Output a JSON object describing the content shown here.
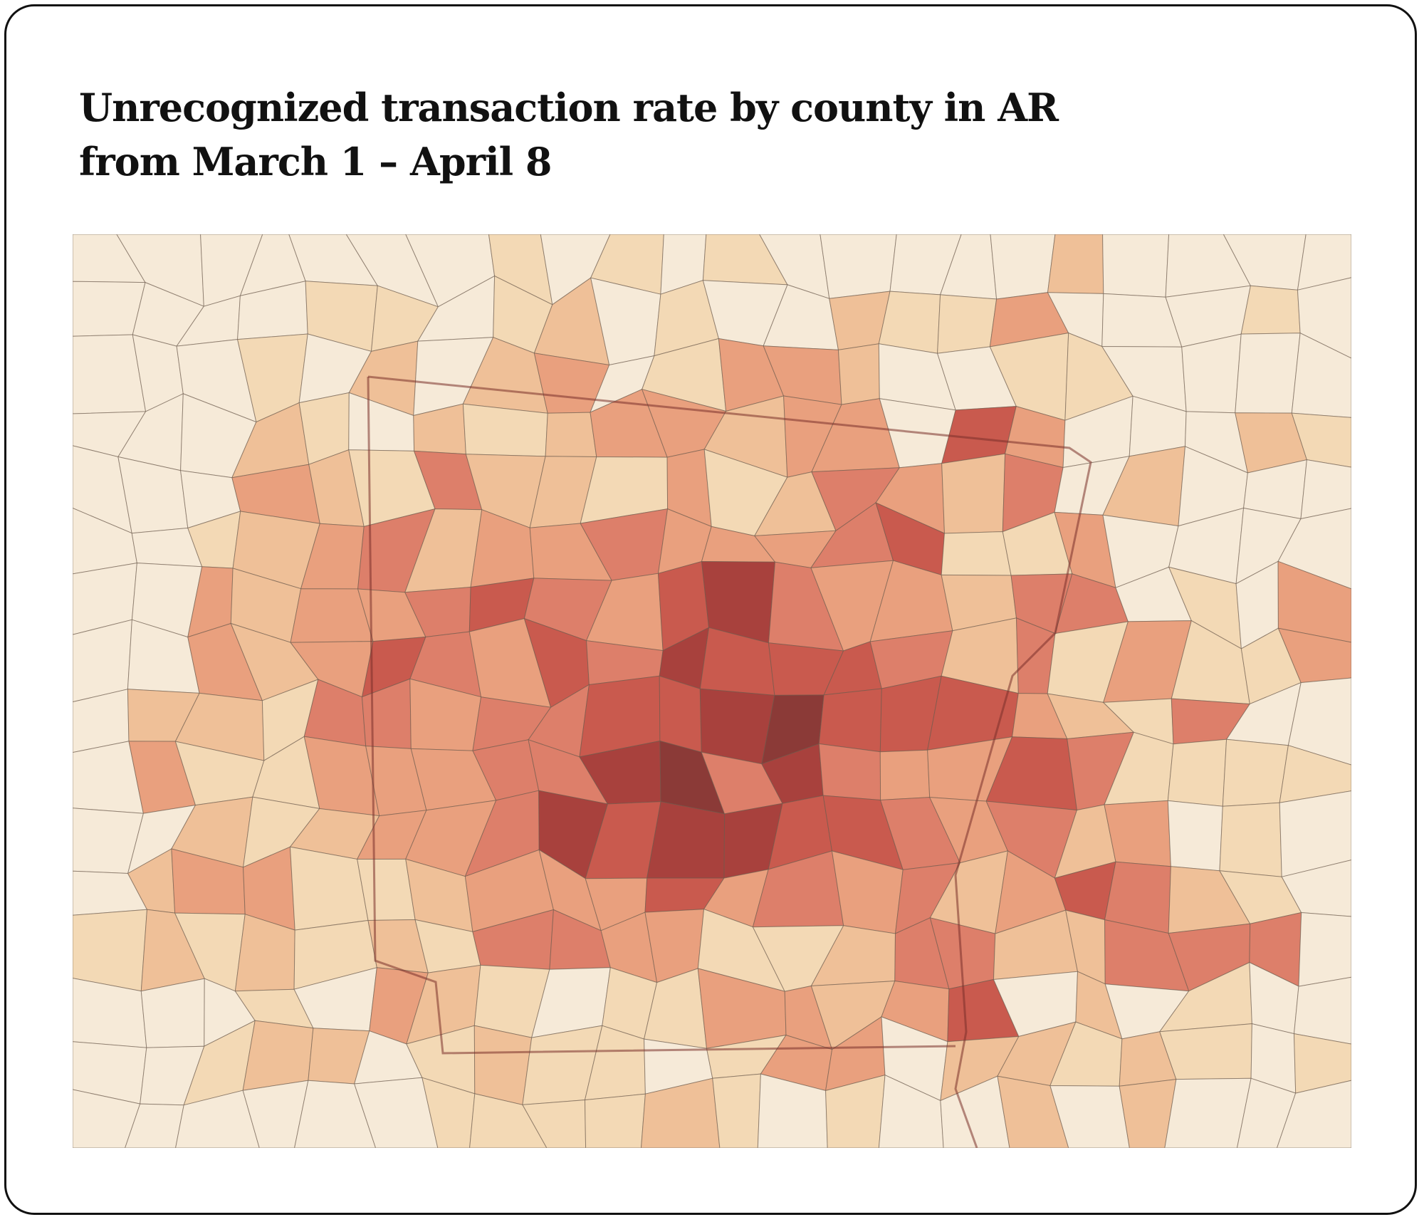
{
  "title": {
    "line1": "Unrecognized transaction rate by county in AR",
    "line2": "from March 1 – April 8"
  }
}
